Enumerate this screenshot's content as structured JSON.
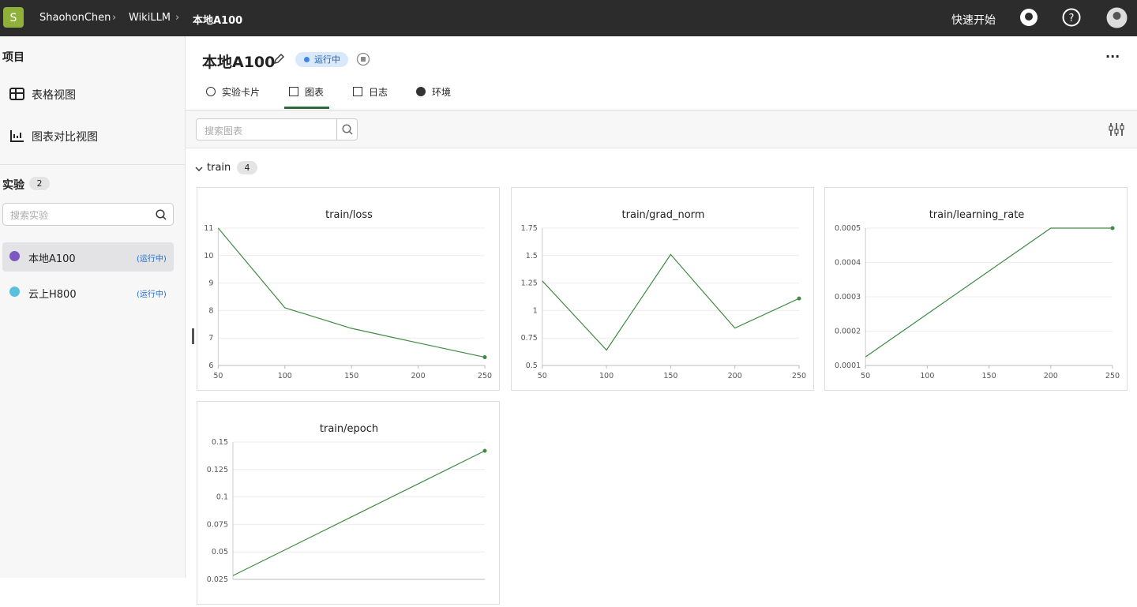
{
  "topbar": {
    "breadcrumb": [
      "ShaohonChen",
      "WikiLLM",
      "本地A100"
    ],
    "quick_start": "快速开始"
  },
  "sidebar": {
    "project_heading": "项目",
    "views": [
      "表格视图",
      "图表对比视图"
    ],
    "experiments_heading": "实验",
    "experiment_count": 2,
    "search_placeholder": "搜索实验",
    "experiments": [
      {
        "name": "本地A100",
        "status": "(运行中)",
        "color": "#7e57c2"
      },
      {
        "name": "云上H800",
        "status": "(运行中)",
        "color": "#5bc0de"
      }
    ]
  },
  "header": {
    "title": "本地A100",
    "status": "运行中",
    "tabs": [
      "实验卡片",
      "图表",
      "日志",
      "环境"
    ]
  },
  "toolbar": {
    "search_placeholder": "搜索图表"
  },
  "group": {
    "name": "train",
    "count": 4
  },
  "charts": [
    {
      "type": "line",
      "title": "train/loss",
      "x": [
        50,
        100,
        150,
        200,
        250
      ],
      "values": [
        11,
        8.1,
        7.35,
        6.82,
        6.3
      ],
      "xlim": [
        50,
        250
      ],
      "xticks": [
        50,
        100,
        150,
        200,
        250
      ],
      "ylim": [
        6,
        11
      ],
      "yticks": [
        6,
        7,
        8,
        9,
        10,
        11
      ],
      "color": "#3f8a44",
      "grid": true
    },
    {
      "type": "line",
      "title": "train/grad_norm",
      "x": [
        50,
        100,
        150,
        200,
        250
      ],
      "values": [
        1.27,
        0.64,
        1.51,
        0.84,
        1.11
      ],
      "xlim": [
        50,
        250
      ],
      "xticks": [
        50,
        100,
        150,
        200,
        250
      ],
      "ylim": [
        0.5,
        1.75
      ],
      "yticks": [
        0.5,
        0.75,
        1,
        1.25,
        1.5,
        1.75
      ],
      "color": "#3f8a44",
      "grid": true
    },
    {
      "type": "line",
      "title": "train/learning_rate",
      "x": [
        50,
        100,
        150,
        200,
        250
      ],
      "values": [
        0.000125,
        0.00025,
        0.000375,
        0.0005,
        0.0005
      ],
      "xlim": [
        50,
        250
      ],
      "xticks": [
        50,
        100,
        150,
        200,
        250
      ],
      "ylim": [
        0.0001,
        0.0005
      ],
      "yticks": [
        0.0001,
        0.0002,
        0.0003,
        0.0004,
        0.0005
      ],
      "color": "#3f8a44",
      "grid": true
    },
    {
      "type": "line",
      "title": "train/epoch",
      "x": [
        50,
        100,
        150,
        200,
        250
      ],
      "values": [
        0.0284,
        0.0568,
        0.0852,
        0.1136,
        0.142
      ],
      "xlim": [
        50,
        250
      ],
      "ylim": [
        0.025,
        0.15
      ],
      "yticks": [
        0.025,
        0.05,
        0.075,
        0.1,
        0.125,
        0.15
      ],
      "color": "#3f8a44",
      "grid": true
    }
  ]
}
